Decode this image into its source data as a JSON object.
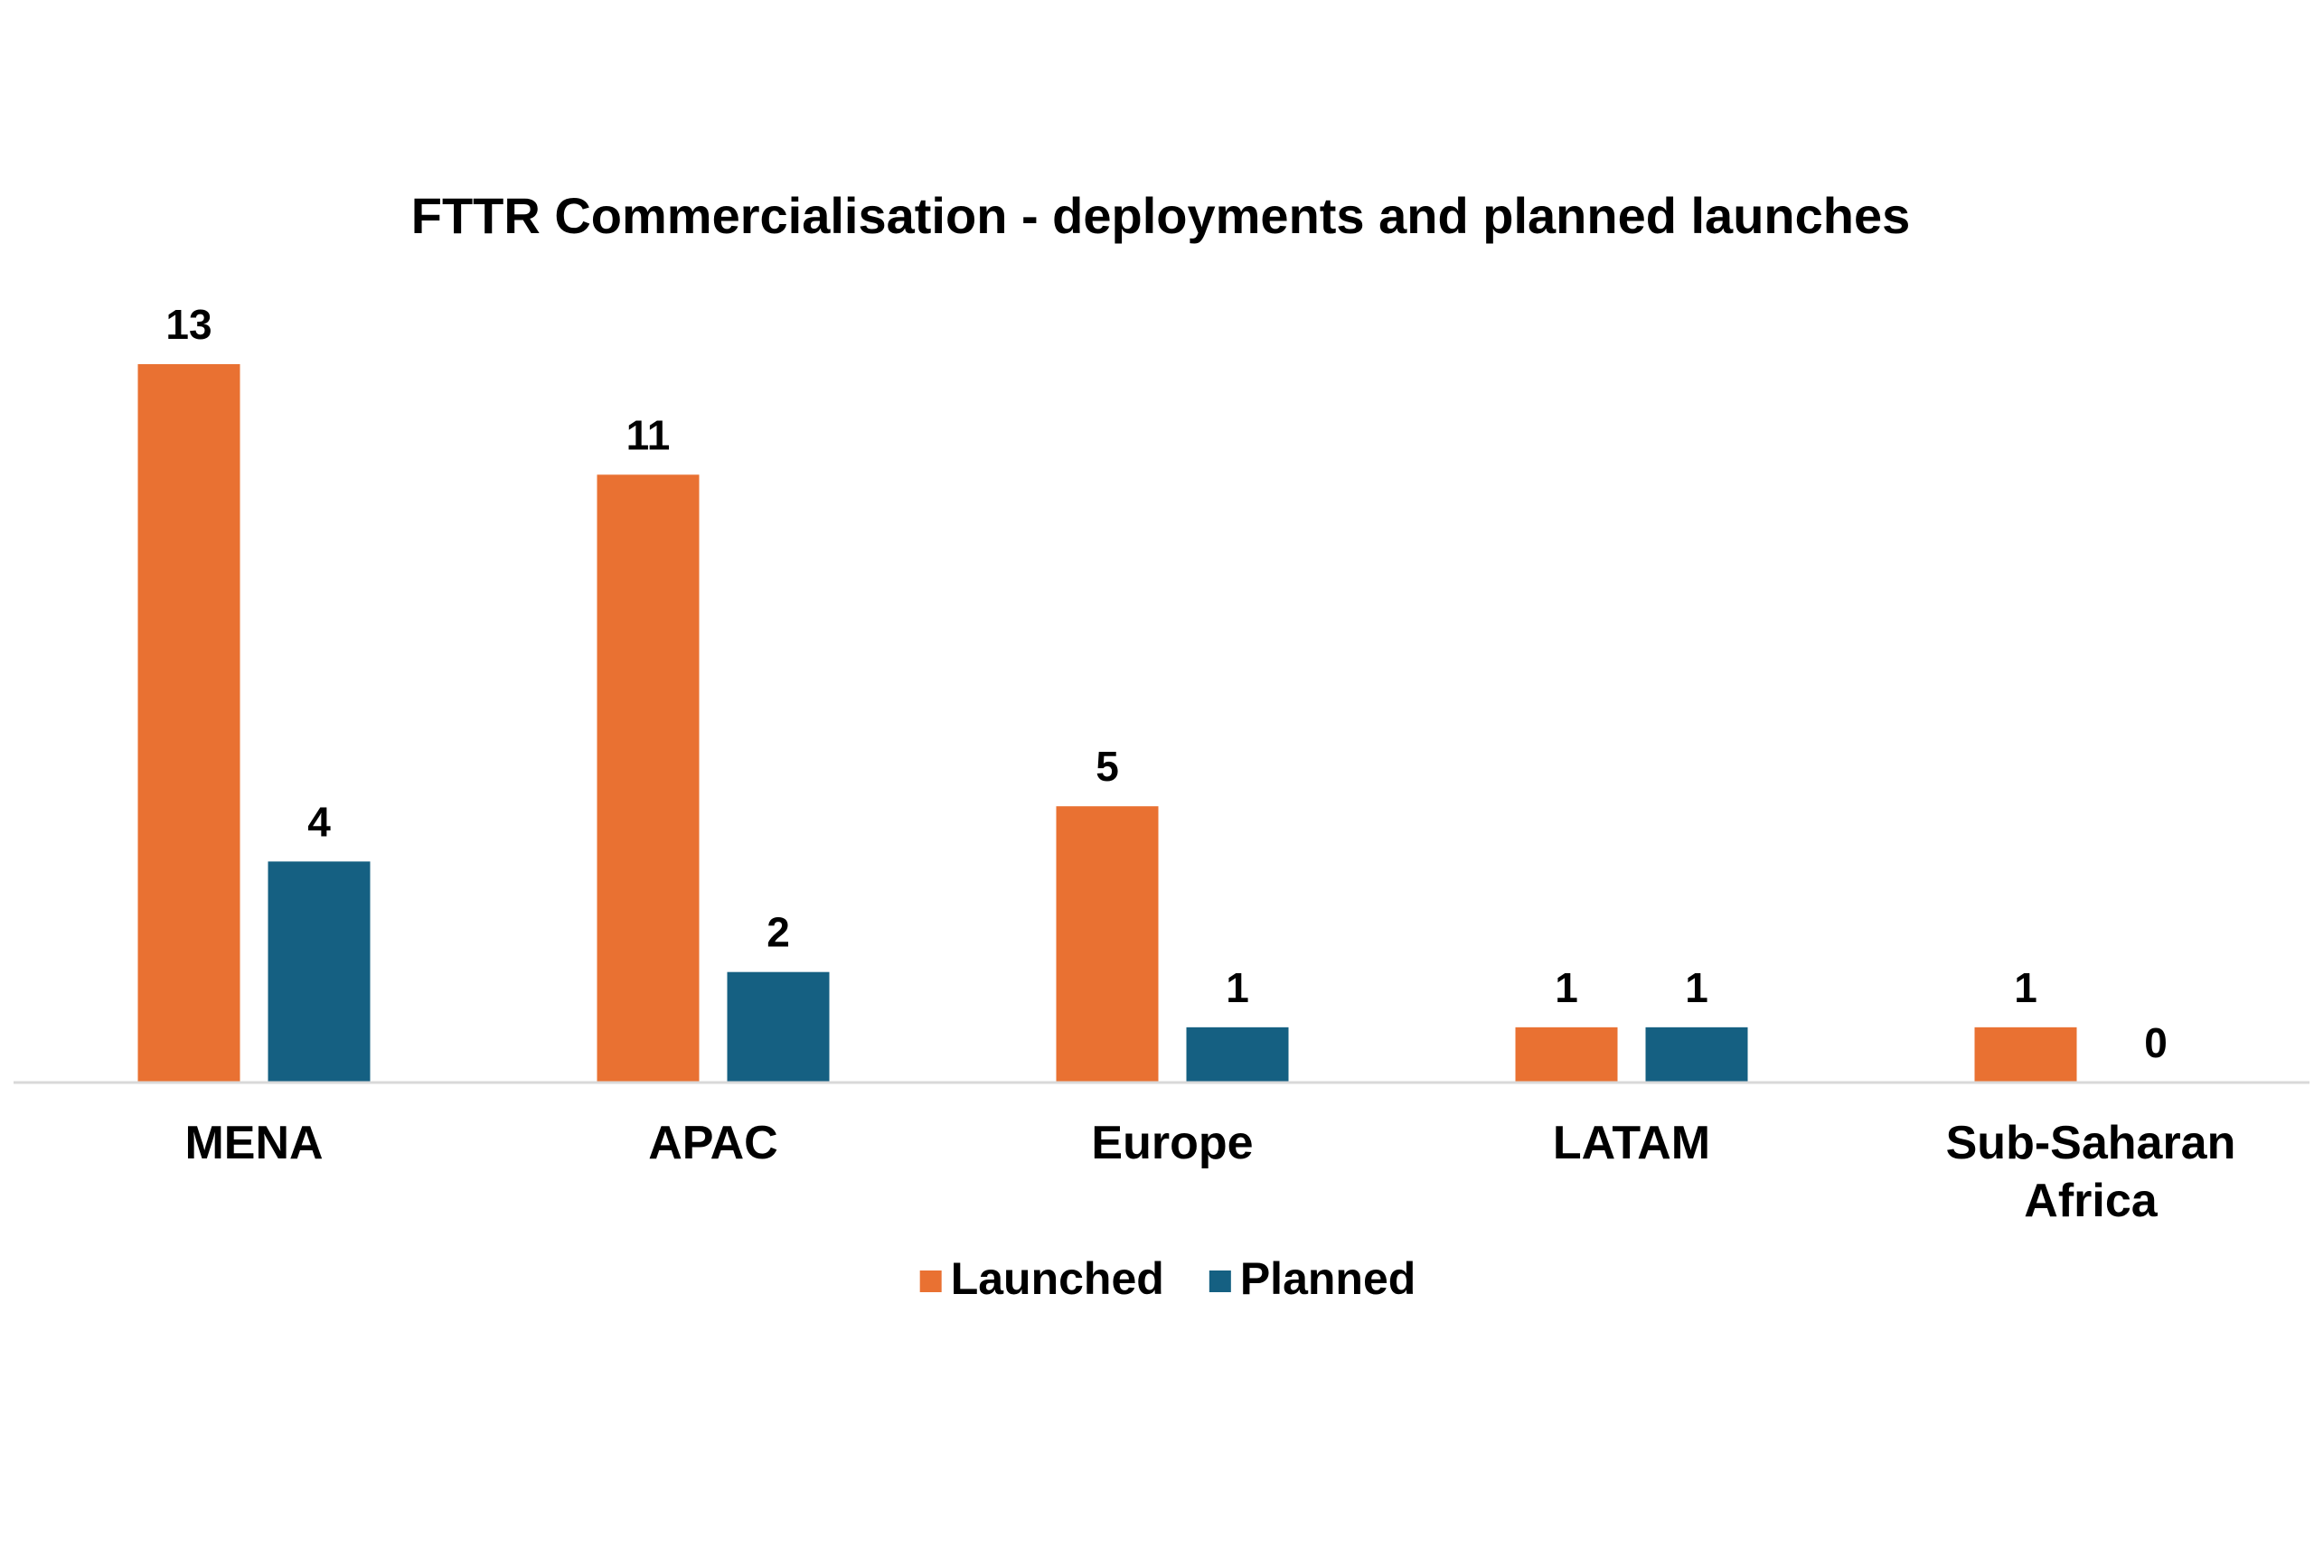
{
  "chart_data": {
    "type": "bar",
    "title": "FTTR Commercialisation - deployments and planned launches",
    "xlabel": "",
    "ylabel": "",
    "categories": [
      [
        "MENA"
      ],
      [
        "APAC"
      ],
      [
        "Europe"
      ],
      [
        "LATAM"
      ],
      [
        "Sub-Saharan",
        "Africa"
      ]
    ],
    "series": [
      {
        "name": "Launched",
        "values": [
          13,
          11,
          5,
          1,
          1
        ],
        "color": "#E97132"
      },
      {
        "name": "Planned",
        "values": [
          4,
          2,
          1,
          1,
          0
        ],
        "color": "#156082"
      }
    ],
    "ylim": [
      0,
      13
    ],
    "grid": false,
    "axis_line_color": "#D9D9D9",
    "legend_position": "bottom",
    "data_labels": true
  }
}
